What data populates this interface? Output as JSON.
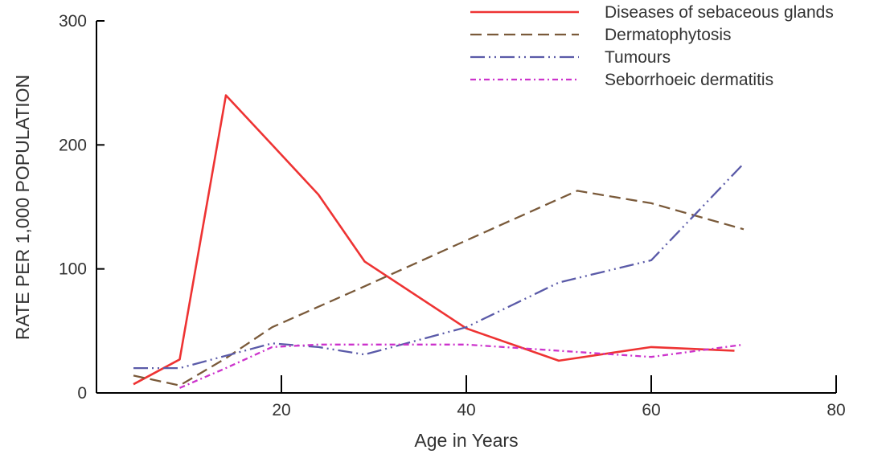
{
  "chart_data": {
    "type": "line",
    "xlabel": "Age in Years",
    "ylabel": "RATE PER 1,000 POPULATION",
    "xlim": [
      0,
      80
    ],
    "ylim": [
      0,
      300
    ],
    "xticks": [
      20,
      40,
      60,
      80
    ],
    "yticks": [
      0,
      100,
      200,
      300
    ],
    "grid": false,
    "legend_position": "top-right",
    "series": [
      {
        "name": "Diseases of sebaceous glands",
        "color": "#ee3333",
        "dash": "solid",
        "x": [
          4,
          9,
          14,
          19,
          24,
          29,
          40,
          50,
          60,
          69
        ],
        "y": [
          7,
          27,
          240,
          200,
          160,
          106,
          52,
          26,
          37,
          34
        ]
      },
      {
        "name": "Dermatophytosis",
        "color": "#7a5a3a",
        "dash": "dashed",
        "x": [
          4,
          9,
          14,
          19,
          29,
          40,
          52,
          60,
          70
        ],
        "y": [
          14,
          6,
          28,
          53,
          86,
          123,
          163,
          153,
          132
        ]
      },
      {
        "name": "Tumours",
        "color": "#5a5aa8",
        "dash": "dash-dot-dot",
        "x": [
          4,
          9,
          14,
          19,
          24,
          29,
          40,
          50,
          60,
          70
        ],
        "y": [
          20,
          20,
          30,
          40,
          37,
          31,
          53,
          89,
          107,
          185
        ]
      },
      {
        "name": "Seborrhoeic dermatitis",
        "color": "#cc33cc",
        "dash": "dash-dot",
        "x": [
          9,
          14,
          19,
          24,
          29,
          40,
          50,
          60,
          70
        ],
        "y": [
          4,
          20,
          37,
          39,
          39,
          39,
          34,
          29,
          39
        ]
      }
    ]
  }
}
